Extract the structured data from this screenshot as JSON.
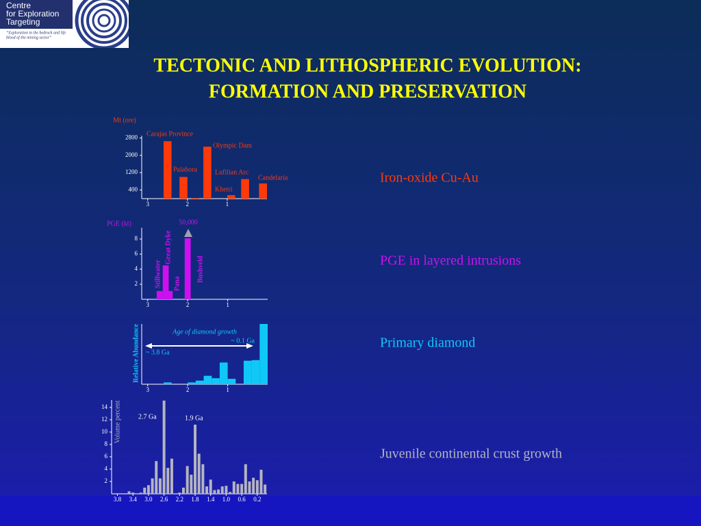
{
  "logo": {
    "lines": [
      "Centre",
      "for Exploration",
      "Targeting"
    ],
    "tagline": [
      "“Exploration in the bedrock and life",
      "blood of the mining sector”"
    ]
  },
  "title": [
    "TECTONIC AND LITHOSPHERIC EVOLUTION:",
    "FORMATION AND PRESERVATION"
  ],
  "chart_data": [
    {
      "type": "bar",
      "title": "Iron-oxide Cu-Au",
      "ylabel": "Mt (ore)",
      "color": "#ff3a0a",
      "x": [
        2.5,
        2.1,
        1.8,
        1.5,
        0.9,
        0.55,
        0.1
      ],
      "values": [
        2650,
        1000,
        30,
        2400,
        160,
        900,
        700
      ],
      "bar_labels": [
        "Carajas Province",
        "Palabora",
        null,
        "Olympic Dam",
        "Khetri",
        "Lufilian Arc",
        "Candelaria"
      ],
      "xlim": [
        3.15,
        0
      ],
      "xticks": [
        3,
        2,
        1
      ],
      "ylim": [
        0,
        2900
      ],
      "yticks": [
        400,
        1200,
        2000,
        2800
      ],
      "grid": false
    },
    {
      "type": "bar",
      "title": "PGE in layered intrusions",
      "ylabel": "PGE (kt)",
      "color": "#cc10f0",
      "x": [
        2.7,
        2.55,
        2.45,
        2.0
      ],
      "values": [
        1.1,
        4.5,
        1.1,
        8.1
      ],
      "bar_labels": [
        "Stillwater",
        "Great Dyke",
        "Pana",
        "Bushveld"
      ],
      "annotations": [
        "50,000"
      ],
      "xlim": [
        3.15,
        0
      ],
      "xticks": [
        3,
        2,
        1
      ],
      "ylim": [
        0,
        9.5
      ],
      "yticks": [
        2,
        4,
        6,
        8
      ],
      "grid": false
    },
    {
      "type": "histogram",
      "title": "Primary diamond",
      "ylabel": "Relative Abundance",
      "color": "#10c8f8",
      "bins": [
        3.0,
        2.8,
        2.6,
        2.4,
        2.2,
        2.0,
        1.8,
        1.6,
        1.4,
        1.2,
        1.0,
        0.8,
        0.6,
        0.4,
        0.2,
        0.0
      ],
      "values": [
        0,
        0,
        3,
        0,
        0,
        3,
        6,
        14,
        10,
        36,
        9,
        0,
        39,
        40,
        100
      ],
      "annotations": [
        "Age of diamond growth",
        "~ 0.1 Ga",
        "~ 3.8 Ga"
      ],
      "xlim": [
        3.15,
        0
      ],
      "xticks": [
        3,
        2,
        1
      ],
      "ylim": [
        0,
        100
      ],
      "grid": false
    },
    {
      "type": "bar",
      "title": "Juvenile continental crust growth",
      "ylabel": "Volume percent",
      "color": "#b4b4c0",
      "x": [
        3.5,
        3.4,
        3.2,
        3.1,
        3.0,
        2.9,
        2.8,
        2.7,
        2.6,
        2.5,
        2.4,
        2.2,
        2.1,
        2.0,
        1.9,
        1.8,
        1.7,
        1.6,
        1.5,
        1.4,
        1.3,
        1.2,
        1.1,
        1.0,
        0.9,
        0.8,
        0.7,
        0.6,
        0.5,
        0.4,
        0.3,
        0.2,
        0.1,
        0.0
      ],
      "values": [
        0.4,
        0.2,
        0.2,
        1.0,
        1.4,
        2.5,
        5.3,
        2.5,
        15.1,
        4.2,
        5.7,
        0.2,
        1.0,
        4.5,
        3.1,
        11.2,
        6.5,
        4.8,
        1.2,
        2.3,
        0.6,
        0.7,
        1.2,
        1.3,
        0.3,
        2.0,
        1.6,
        1.6,
        4.8,
        2.0,
        2.6,
        2.2,
        3.9,
        1.5
      ],
      "annotations": [
        "2.7 Ga",
        "1.9 Ga"
      ],
      "xlim": [
        3.95,
        -0.05
      ],
      "xticks": [
        3.8,
        3.4,
        {
          "value": 3,
          "label": "3.0"
        },
        2.6,
        2.2,
        1.8,
        1.4,
        {
          "value": 1,
          "label": "1.0"
        },
        0.6,
        0.2
      ],
      "ylim": [
        0,
        15.2
      ],
      "yticks": [
        2,
        4,
        6,
        8,
        10,
        12,
        14
      ],
      "grid": false
    }
  ]
}
